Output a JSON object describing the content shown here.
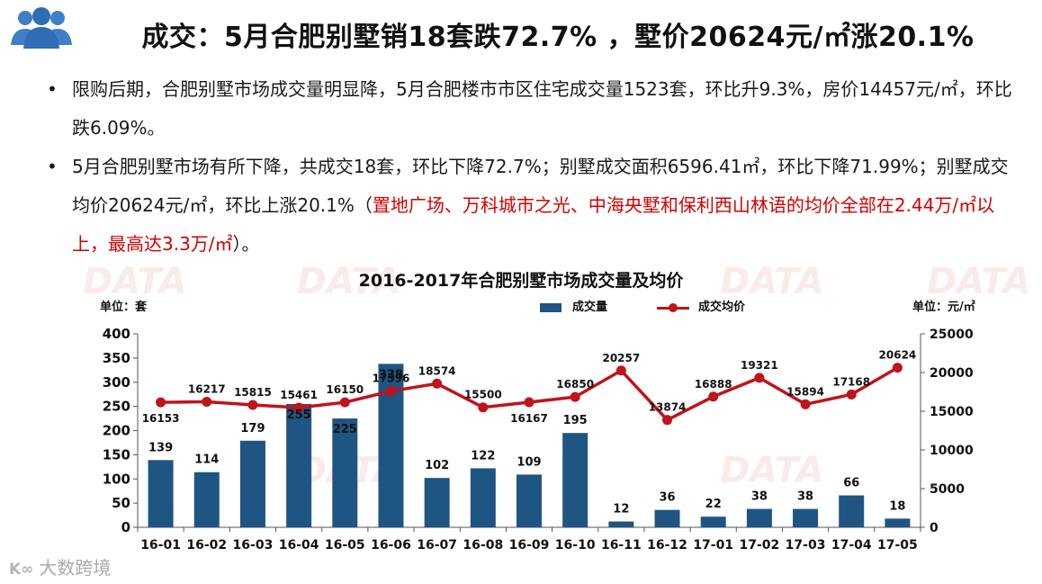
{
  "slide": {
    "title": "成交：5月合肥别墅销18套跌72.7% ，墅价20624元/㎡涨20.1%",
    "bullets": [
      {
        "text": "限购后期，合肥别墅市场成交量明显降，5月合肥楼市市区住宅成交量1523套，环比升9.3%，房价14457元/㎡，环比跌6.09%。",
        "highlight": ""
      },
      {
        "text": "5月合肥别墅市场有所下降，共成交18套，环比下降72.7%；别墅成交面积6596.41㎡，环比下降71.99%；别墅成交均价20624元/㎡，环比上涨20.1%（",
        "highlight": "置地广场、万科城市之光、中海央墅和保利西山林语的均价全部在2.44万/㎡以上，最高达3.3万/㎡",
        "tail": "）。"
      }
    ],
    "footer_logo": "大数跨境",
    "watermark_text": "DATA",
    "colors": {
      "bar": "#1f5582",
      "line": "#c0131b",
      "highlight": "#d40000"
    }
  },
  "chart_data": {
    "type": "bar",
    "title": "2016-2017年合肥别墅市场成交量及均价",
    "unit_left": "单位：套",
    "unit_right": "单位：元/㎡",
    "categories": [
      "16-01",
      "16-02",
      "16-03",
      "16-04",
      "16-05",
      "16-06",
      "16-07",
      "16-08",
      "16-09",
      "16-10",
      "16-11",
      "16-12",
      "17-01",
      "17-02",
      "17-03",
      "17-04",
      "17-05"
    ],
    "series": [
      {
        "name": "成交量",
        "type": "bar",
        "axis": "left",
        "values": [
          139,
          114,
          179,
          255,
          225,
          338,
          102,
          122,
          109,
          195,
          12,
          36,
          22,
          38,
          38,
          66,
          18
        ]
      },
      {
        "name": "成交均价",
        "type": "line",
        "axis": "right",
        "values": [
          16153,
          16217,
          15815,
          15461,
          16150,
          17596,
          18574,
          15500,
          16167,
          16850,
          20257,
          13874,
          16888,
          19321,
          15894,
          17168,
          20624
        ]
      }
    ],
    "ylim_left": [
      0,
      400
    ],
    "yticks_left": [
      0,
      50,
      100,
      150,
      200,
      250,
      300,
      350,
      400
    ],
    "ylim_right": [
      0,
      25000
    ],
    "yticks_right": [
      0,
      5000,
      10000,
      15000,
      20000,
      25000
    ],
    "line_label_positions": [
      "below",
      "above",
      "above",
      "above",
      "above",
      "above",
      "above",
      "above",
      "below",
      "above",
      "above",
      "above",
      "above",
      "above",
      "above",
      "above",
      "above"
    ],
    "grid": false,
    "legend": "top"
  }
}
